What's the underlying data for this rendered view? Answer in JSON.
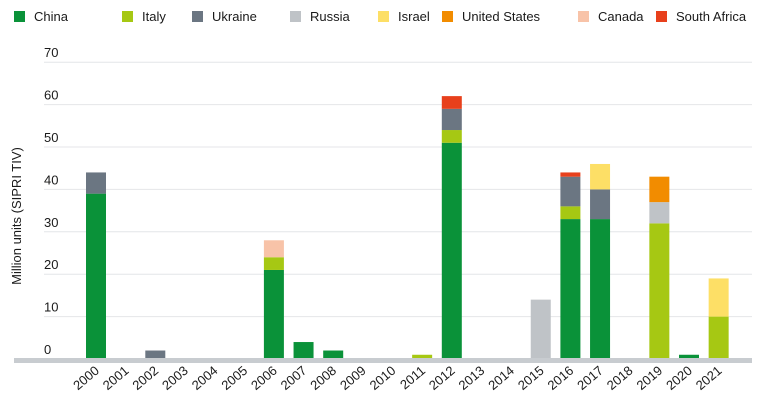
{
  "chart_data": {
    "type": "bar",
    "stacked": true,
    "ylabel": "Million units (SIPRI TIV)",
    "xlabel": "",
    "title": "",
    "ylim": [
      0,
      70
    ],
    "yticks": [
      0,
      10,
      20,
      30,
      40,
      50,
      60,
      70
    ],
    "grid": true,
    "legend_position": "top",
    "categories": [
      "2000",
      "2001",
      "2002",
      "2003",
      "2004",
      "2005",
      "2006",
      "2007",
      "2008",
      "2009",
      "2010",
      "2011",
      "2012",
      "2013",
      "2014",
      "2015",
      "2016",
      "2017",
      "2018",
      "2019",
      "2020",
      "2021"
    ],
    "series": [
      {
        "name": "China",
        "color": "#0a9239",
        "values": [
          39,
          0,
          0,
          0,
          0,
          0,
          21,
          4,
          2,
          0,
          0,
          0,
          51,
          0,
          0,
          0,
          33,
          33,
          0,
          0,
          1,
          0
        ]
      },
      {
        "name": "Italy",
        "color": "#a6c813",
        "values": [
          0,
          0,
          0,
          0,
          0,
          0,
          3,
          0,
          0,
          0,
          0,
          1,
          3,
          0,
          0,
          0,
          3,
          0,
          0,
          32,
          0,
          10
        ]
      },
      {
        "name": "Ukraine",
        "color": "#6b7682",
        "values": [
          5,
          0,
          2,
          0,
          0,
          0,
          0,
          0,
          0,
          0,
          0,
          0,
          5,
          0,
          0,
          0,
          7,
          7,
          0,
          0,
          0,
          0
        ]
      },
      {
        "name": "Russia",
        "color": "#bfc3c7",
        "values": [
          0,
          0,
          0,
          0,
          0,
          0,
          0,
          0,
          0,
          0,
          0,
          0,
          0,
          0,
          0,
          14,
          0,
          0,
          0,
          5,
          0,
          0
        ]
      },
      {
        "name": "Israel",
        "color": "#fddf66",
        "values": [
          0,
          0,
          0,
          0,
          0,
          0,
          0,
          0,
          0,
          0,
          0,
          0,
          0,
          0,
          0,
          0,
          0,
          6,
          0,
          0,
          0,
          9
        ]
      },
      {
        "name": "United States",
        "color": "#f28c00",
        "values": [
          0,
          0,
          0,
          0,
          0,
          0,
          0,
          0,
          0,
          0,
          0,
          0,
          0,
          0,
          0,
          0,
          0,
          0,
          0,
          6,
          0,
          0
        ]
      },
      {
        "name": "Canada",
        "color": "#f8c3a8",
        "values": [
          0,
          0,
          0,
          0,
          0,
          0,
          4,
          0,
          0,
          0,
          0,
          0,
          0,
          0,
          0,
          0,
          0,
          0,
          0,
          0,
          0,
          0
        ]
      },
      {
        "name": "South Africa",
        "color": "#e8401c",
        "values": [
          0,
          0,
          0,
          0,
          0,
          0,
          0,
          0,
          0,
          0,
          0,
          0,
          3,
          0,
          0,
          0,
          1,
          0,
          0,
          0,
          0,
          0
        ]
      }
    ]
  }
}
